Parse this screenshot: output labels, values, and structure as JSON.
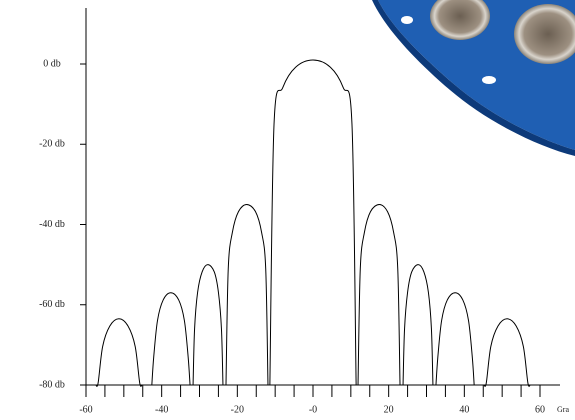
{
  "chart_data": {
    "type": "line",
    "x_label": "Gra",
    "xlim": [
      -60,
      60
    ],
    "xticks": [
      -60,
      -40,
      -20,
      {
        "value": 0,
        "label": "-0"
      },
      20,
      40,
      60
    ],
    "ylim": [
      -80,
      0
    ],
    "yticks": [
      {
        "value": 0,
        "label": "0 db"
      },
      {
        "value": -20,
        "label": "-20 db"
      },
      {
        "value": -40,
        "label": "-40 db"
      },
      {
        "value": -60,
        "label": "-60 db"
      },
      {
        "value": -80,
        "label": "-80 db"
      }
    ],
    "series": [
      {
        "color": "#000000",
        "x": [
          -57.4,
          -56.8,
          -55.6,
          -53.7,
          -51.3,
          -48.9,
          -47.0,
          -45.8,
          -45.2,
          null,
          -42.6,
          -42.1,
          -41.1,
          -39.6,
          -37.6,
          -35.5,
          -34.0,
          -33.0,
          -32.5,
          null,
          -31.7,
          -31.3,
          -30.5,
          -29.3,
          -27.8,
          -26.1,
          -25.0,
          -24.2,
          -23.8,
          null,
          -23.0,
          -22.4,
          -21.3,
          -19.7,
          -17.5,
          -15.2,
          -13.6,
          -12.5,
          -11.9,
          null,
          -11.4,
          -10.3,
          -8.0,
          -4.6,
          0,
          4.6,
          8.0,
          10.3,
          11.4,
          null,
          11.9,
          12.5,
          13.6,
          15.2,
          17.5,
          19.7,
          21.3,
          22.4,
          23.0,
          null,
          23.8,
          24.2,
          25.0,
          26.1,
          27.8,
          29.3,
          30.5,
          31.3,
          31.7,
          null,
          32.5,
          33.0,
          34.0,
          35.5,
          37.6,
          39.6,
          41.1,
          42.1,
          42.6,
          null,
          45.2,
          45.8,
          47.0,
          48.9,
          51.3,
          53.7,
          55.6,
          56.8,
          57.4
        ],
        "values": [
          -80,
          -79.5,
          -70.4,
          -65.3,
          -63.5,
          -65.3,
          -70.4,
          -79.5,
          -80,
          null,
          -80,
          -73,
          -63.9,
          -58.8,
          -57,
          -58.8,
          -63.9,
          -73,
          -80,
          null,
          -80,
          -66,
          -56.9,
          -51.8,
          -50,
          -51.8,
          -56.9,
          -66,
          -80,
          null,
          -80,
          -51,
          -41.9,
          -36.8,
          -35,
          -36.8,
          -41.9,
          -51,
          -80,
          null,
          -80,
          -15,
          -5.9,
          -0.8,
          1,
          -0.8,
          -5.9,
          -15,
          -80,
          null,
          -80,
          -51,
          -41.9,
          -36.8,
          -35,
          -36.8,
          -41.9,
          -51,
          -80,
          null,
          -80,
          -66,
          -56.9,
          -51.8,
          -50,
          -51.8,
          -56.9,
          -66,
          -80,
          null,
          -80,
          -73,
          -63.9,
          -58.8,
          -57,
          -58.8,
          -63.9,
          -73,
          -80,
          null,
          -80,
          -79.5,
          -70.4,
          -65.3,
          -63.5,
          -65.3,
          -70.4,
          -79.5,
          -80
        ]
      }
    ]
  }
}
